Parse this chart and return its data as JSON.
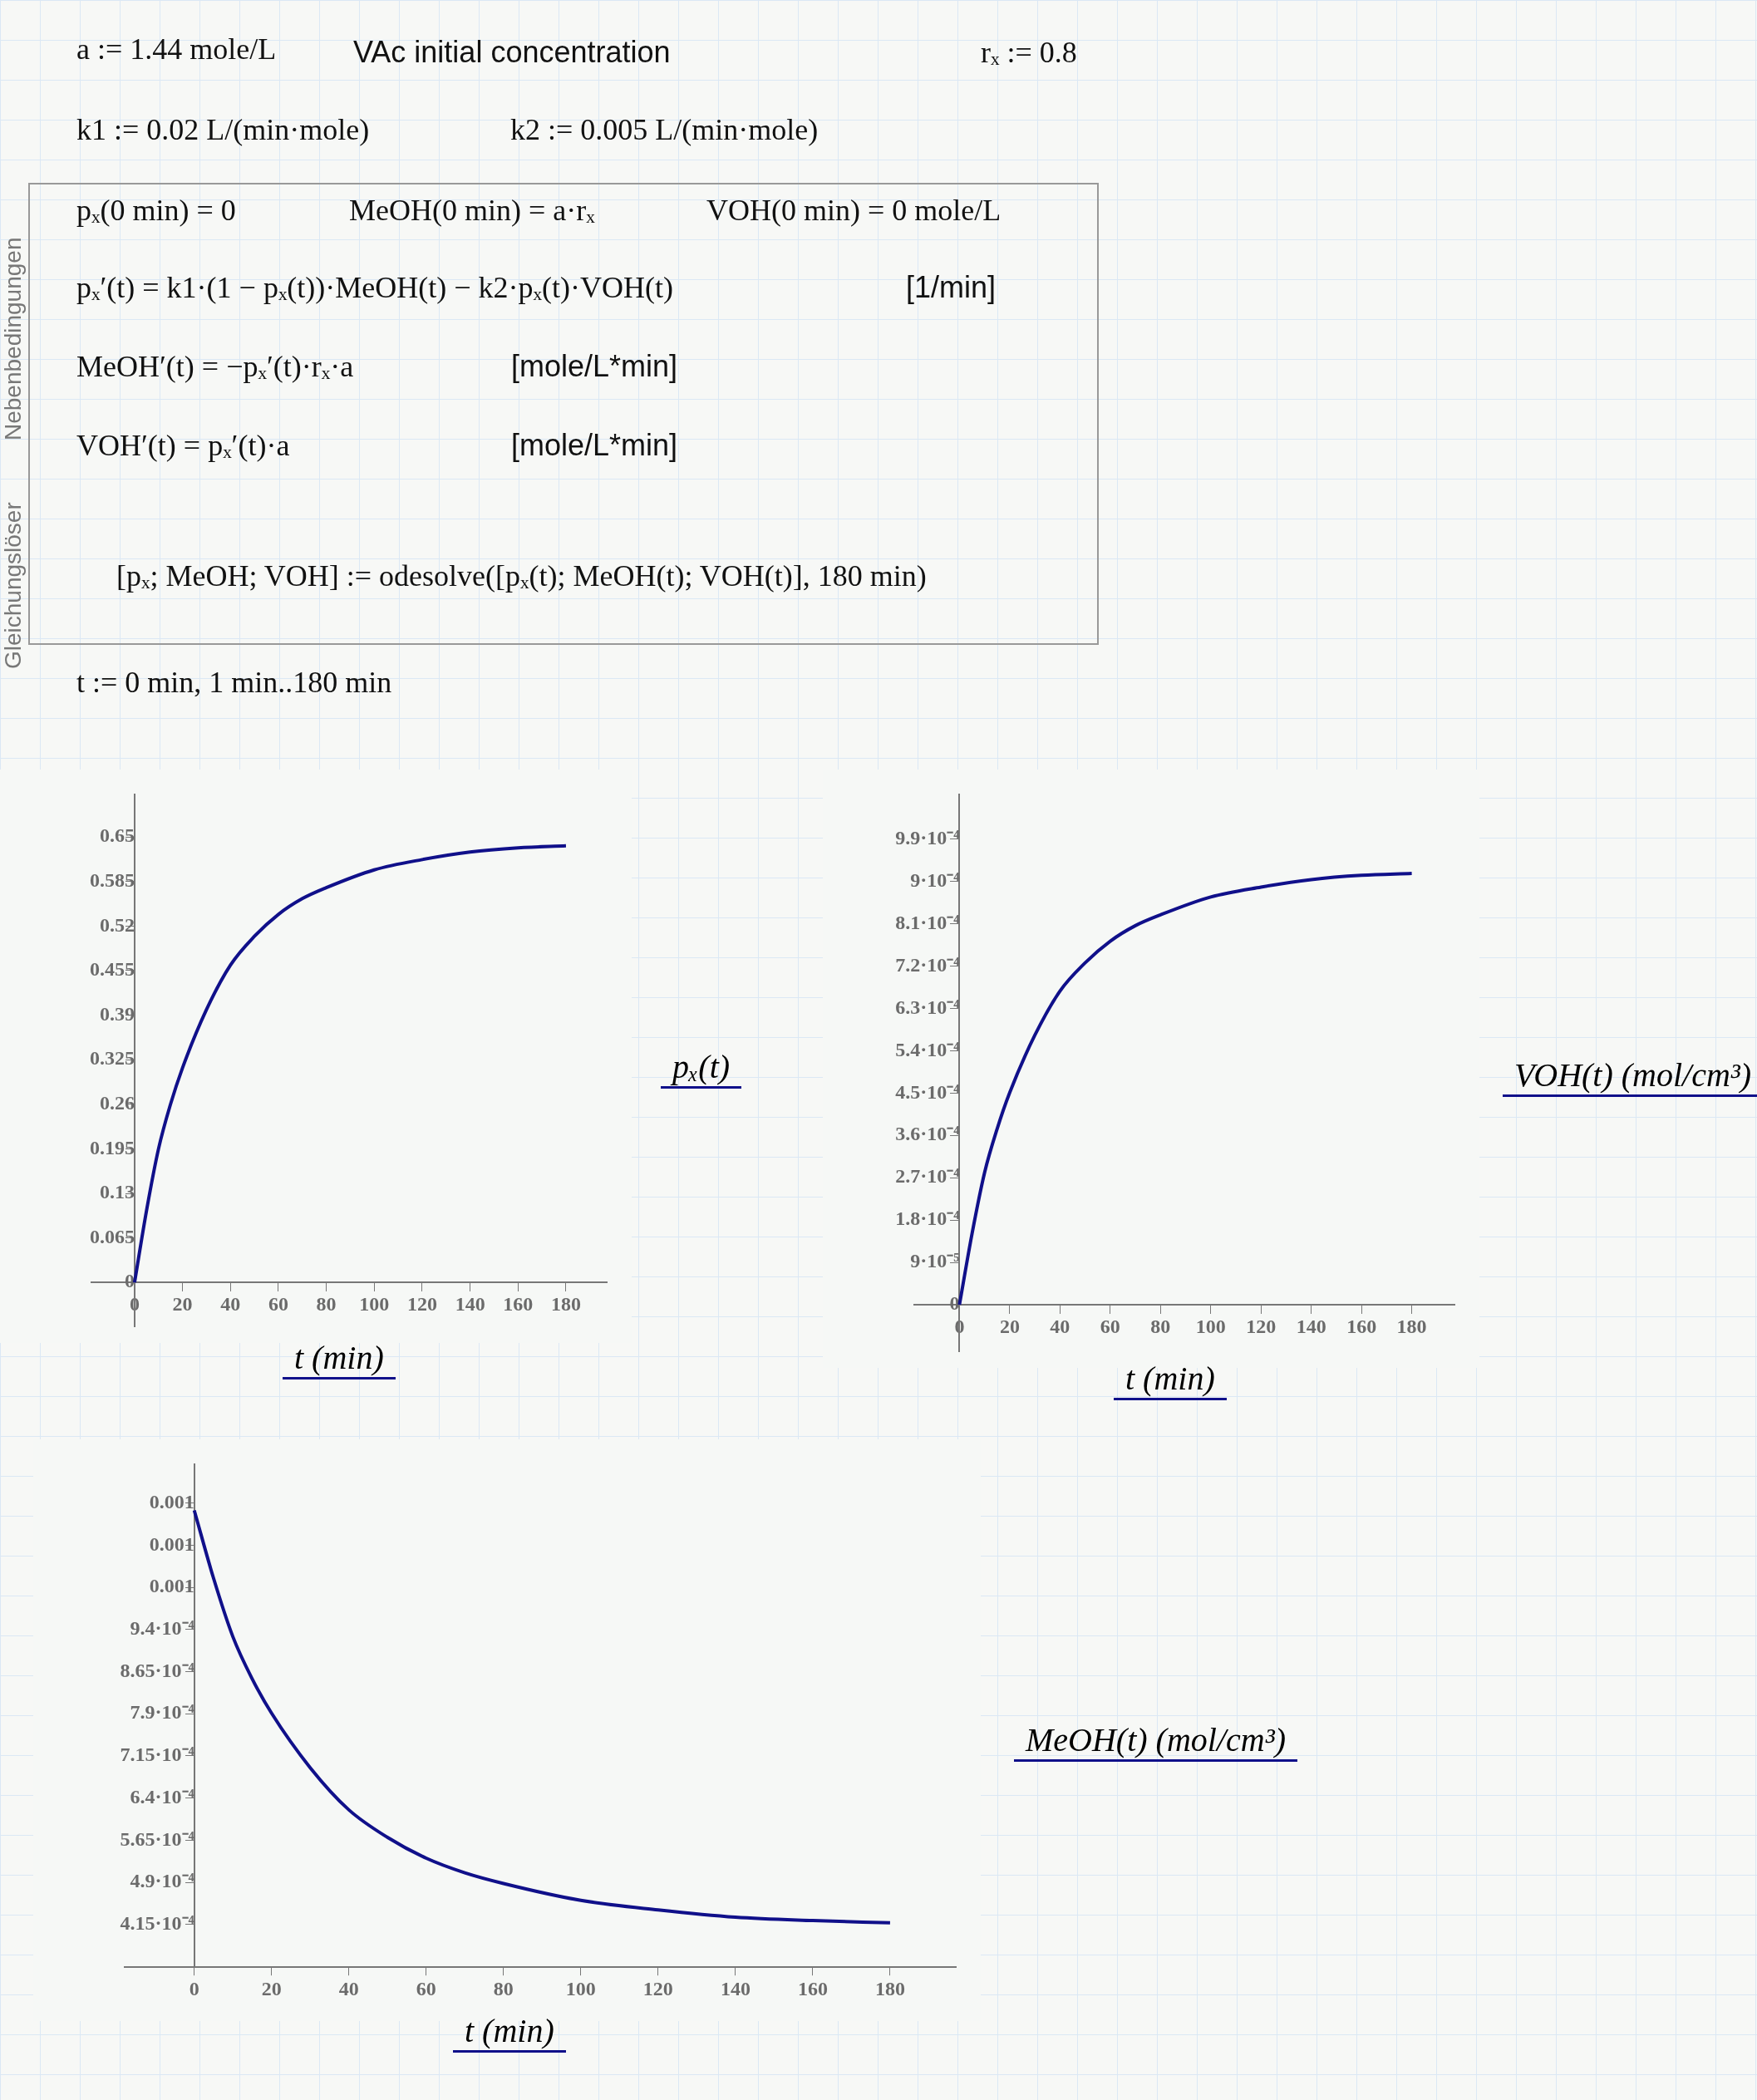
{
  "chart_data": [
    {
      "type": "other",
      "annotations": [
        "a := 1.44 mole/L",
        "VAc initial concentration",
        "rₓ := 0.8",
        "k1 := 0.02 L/(min·mole)",
        "k2 := 0.005 L/(min·mole)",
        "pₓ(0 min) = 0",
        "MeOH(0 min) = a·rₓ",
        "VOH(0 min) = 0 mole/L",
        "pₓ′(t) = k1·(1 − pₓ(t))·MeOH(t) − k2·pₓ(t)·VOH(t)",
        "[1/min]",
        "MeOH′(t) = −pₓ′(t)·rₓ·a",
        "[mole/L*min]",
        "VOH′(t) = pₓ′(t)·a",
        "[mole/L*min]",
        "[pₓ; MeOH; VOH] := odesolve([pₓ(t); MeOH(t); VOH(t)], 180 min)",
        "t := 0 min, 1 min..180 min",
        "Nebenbedingungen",
        "Gleichungslöser"
      ]
    },
    {
      "type": "line",
      "xlabel": "t (min)",
      "ylabel": "pₓ(t)",
      "x": [
        0,
        5,
        10,
        15,
        20,
        30,
        40,
        50,
        60,
        70,
        80,
        100,
        120,
        140,
        160,
        180
      ],
      "series": [
        {
          "color": "#10108a",
          "values": [
            0,
            0.105,
            0.195,
            0.26,
            0.313,
            0.398,
            0.463,
            0.505,
            0.537,
            0.56,
            0.576,
            0.602,
            0.617,
            0.628,
            0.634,
            0.637
          ]
        }
      ],
      "xlim": [
        -18,
        197
      ],
      "ylim": [
        -0.064,
        0.712
      ],
      "xticks": [
        0,
        20,
        40,
        60,
        80,
        100,
        120,
        140,
        160,
        180
      ],
      "yticks": [
        0,
        0.065,
        0.13,
        0.195,
        0.26,
        0.325,
        0.39,
        0.455,
        0.52,
        0.585,
        0.65
      ],
      "grid": false,
      "legend": false
    },
    {
      "type": "line",
      "xlabel": "t (min)",
      "ylabel": "VOH(t) (mol/cm³)",
      "x": [
        0,
        5,
        10,
        15,
        20,
        30,
        40,
        50,
        60,
        70,
        80,
        100,
        120,
        140,
        160,
        180
      ],
      "series": [
        {
          "color": "#10108a",
          "values": [
            0,
            0.000151,
            0.000281,
            0.000374,
            0.000451,
            0.000573,
            0.000667,
            0.000727,
            0.000773,
            0.000806,
            0.000829,
            0.000867,
            0.000888,
            0.000904,
            0.000913,
            0.000917
          ]
        }
      ],
      "xlim": [
        -18,
        197
      ],
      "ylim": [
        -9.9e-05,
        0.001085
      ],
      "xticks": [
        0,
        20,
        40,
        60,
        80,
        100,
        120,
        140,
        160,
        180
      ],
      "yticks": [
        0,
        {
          "value": 9e-05,
          "label": "9·10⁻⁵"
        },
        {
          "value": 0.00018,
          "label": "1.8·10⁻⁴"
        },
        {
          "value": 0.00027,
          "label": "2.7·10⁻⁴"
        },
        {
          "value": 0.00036,
          "label": "3.6·10⁻⁴"
        },
        {
          "value": 0.00045,
          "label": "4.5·10⁻⁴"
        },
        {
          "value": 0.00054,
          "label": "5.4·10⁻⁴"
        },
        {
          "value": 0.00063,
          "label": "6.3·10⁻⁴"
        },
        {
          "value": 0.00072,
          "label": "7.2·10⁻⁴"
        },
        {
          "value": 0.00081,
          "label": "8.1·10⁻⁴"
        },
        {
          "value": 0.0009,
          "label": "9·10⁻⁴"
        },
        {
          "value": 0.00099,
          "label": "9.9·10⁻⁴"
        }
      ],
      "grid": false,
      "legend": false
    },
    {
      "type": "line",
      "xlabel": "t (min)",
      "ylabel": "MeOH(t) (mol/cm³)",
      "x": [
        0,
        5,
        10,
        15,
        20,
        30,
        40,
        50,
        60,
        70,
        80,
        100,
        120,
        140,
        160,
        180
      ],
      "series": [
        {
          "color": "#10108a",
          "values": [
            0.001152,
            0.001031,
            0.000927,
            0.000852,
            0.000791,
            0.000694,
            0.000619,
            0.00057,
            0.000533,
            0.000507,
            0.000488,
            0.000458,
            0.000441,
            0.000428,
            0.000422,
            0.000418
          ]
        }
      ],
      "xlim": [
        -18,
        197
      ],
      "ylim": [
        0.000339,
        0.001234
      ],
      "xticks": [
        0,
        20,
        40,
        60,
        80,
        100,
        120,
        140,
        160,
        180
      ],
      "yticks": [
        {
          "value": 0.000415,
          "label": "4.15·10⁻⁴"
        },
        {
          "value": 0.00049,
          "label": "4.9·10⁻⁴"
        },
        {
          "value": 0.000565,
          "label": "5.65·10⁻⁴"
        },
        {
          "value": 0.00064,
          "label": "6.4·10⁻⁴"
        },
        {
          "value": 0.000715,
          "label": "7.15·10⁻⁴"
        },
        {
          "value": 0.00079,
          "label": "7.9·10⁻⁴"
        },
        {
          "value": 0.000865,
          "label": "8.65·10⁻⁴"
        },
        {
          "value": 0.00094,
          "label": "9.4·10⁻⁴"
        },
        {
          "value": 0.001015,
          "label": "0.001"
        },
        {
          "value": 0.00109,
          "label": "0.001"
        },
        {
          "value": 0.001165,
          "label": "0.001"
        }
      ],
      "grid": false,
      "legend": false
    }
  ]
}
